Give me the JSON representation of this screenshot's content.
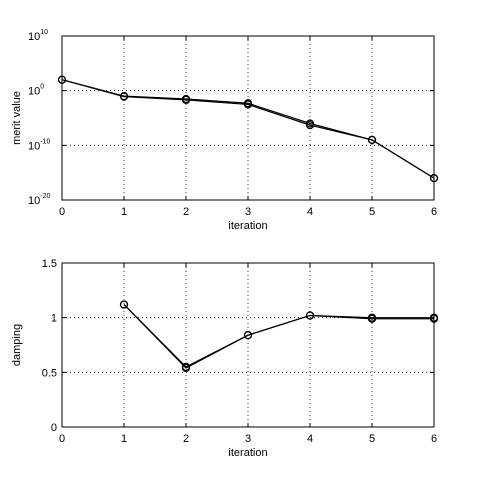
{
  "chart_data": [
    {
      "type": "line",
      "xlabel": "iteration",
      "ylabel": "merit value",
      "xlim": [
        0,
        6
      ],
      "ylim": [
        1e-20,
        10000000000.0
      ],
      "yscale": "log",
      "grid": true,
      "x_ticks": [
        0,
        1,
        2,
        3,
        4,
        5,
        6
      ],
      "x_tick_labels": [
        "0",
        "1",
        "2",
        "3",
        "4",
        "5",
        "6"
      ],
      "y_ticks": [
        10000000000.0,
        1,
        1e-10,
        1e-20
      ],
      "y_tick_labels": [
        {
          "base": "10",
          "exp": "10"
        },
        {
          "base": "10",
          "exp": "0"
        },
        {
          "base": "10",
          "exp": "-10"
        },
        {
          "base": "10",
          "exp": "-20"
        }
      ],
      "series": [
        {
          "x": [
            0,
            1,
            2,
            3,
            4,
            5,
            6
          ],
          "y": [
            100,
            0.1,
            0.03,
            0.005,
            1e-06,
            1e-09,
            1e-16
          ]
        },
        {
          "x": [
            0,
            1,
            2,
            3,
            4,
            5,
            6
          ],
          "y": [
            100,
            0.08,
            0.02,
            0.003,
            5e-07,
            1e-09,
            1e-16
          ]
        }
      ],
      "marker": "circle",
      "line_color": "#000000"
    },
    {
      "type": "line",
      "xlabel": "iteration",
      "ylabel": "damping",
      "xlim": [
        0,
        6
      ],
      "ylim": [
        0,
        1.5
      ],
      "yscale": "linear",
      "grid": true,
      "x_ticks": [
        0,
        1,
        2,
        3,
        4,
        5,
        6
      ],
      "x_tick_labels": [
        "0",
        "1",
        "2",
        "3",
        "4",
        "5",
        "6"
      ],
      "y_ticks": [
        0,
        0.5,
        1,
        1.5
      ],
      "y_tick_labels": [
        "0",
        "0.5",
        "1",
        "1.5"
      ],
      "series": [
        {
          "x": [
            1,
            2,
            3,
            4,
            5,
            6
          ],
          "y": [
            1.12,
            0.55,
            0.84,
            1.02,
            1.0,
            1.0
          ]
        },
        {
          "x": [
            1,
            2,
            3,
            4,
            5,
            6
          ],
          "y": [
            1.12,
            0.54,
            0.84,
            1.02,
            0.99,
            0.99
          ]
        }
      ],
      "marker": "circle",
      "line_color": "#000000"
    }
  ]
}
